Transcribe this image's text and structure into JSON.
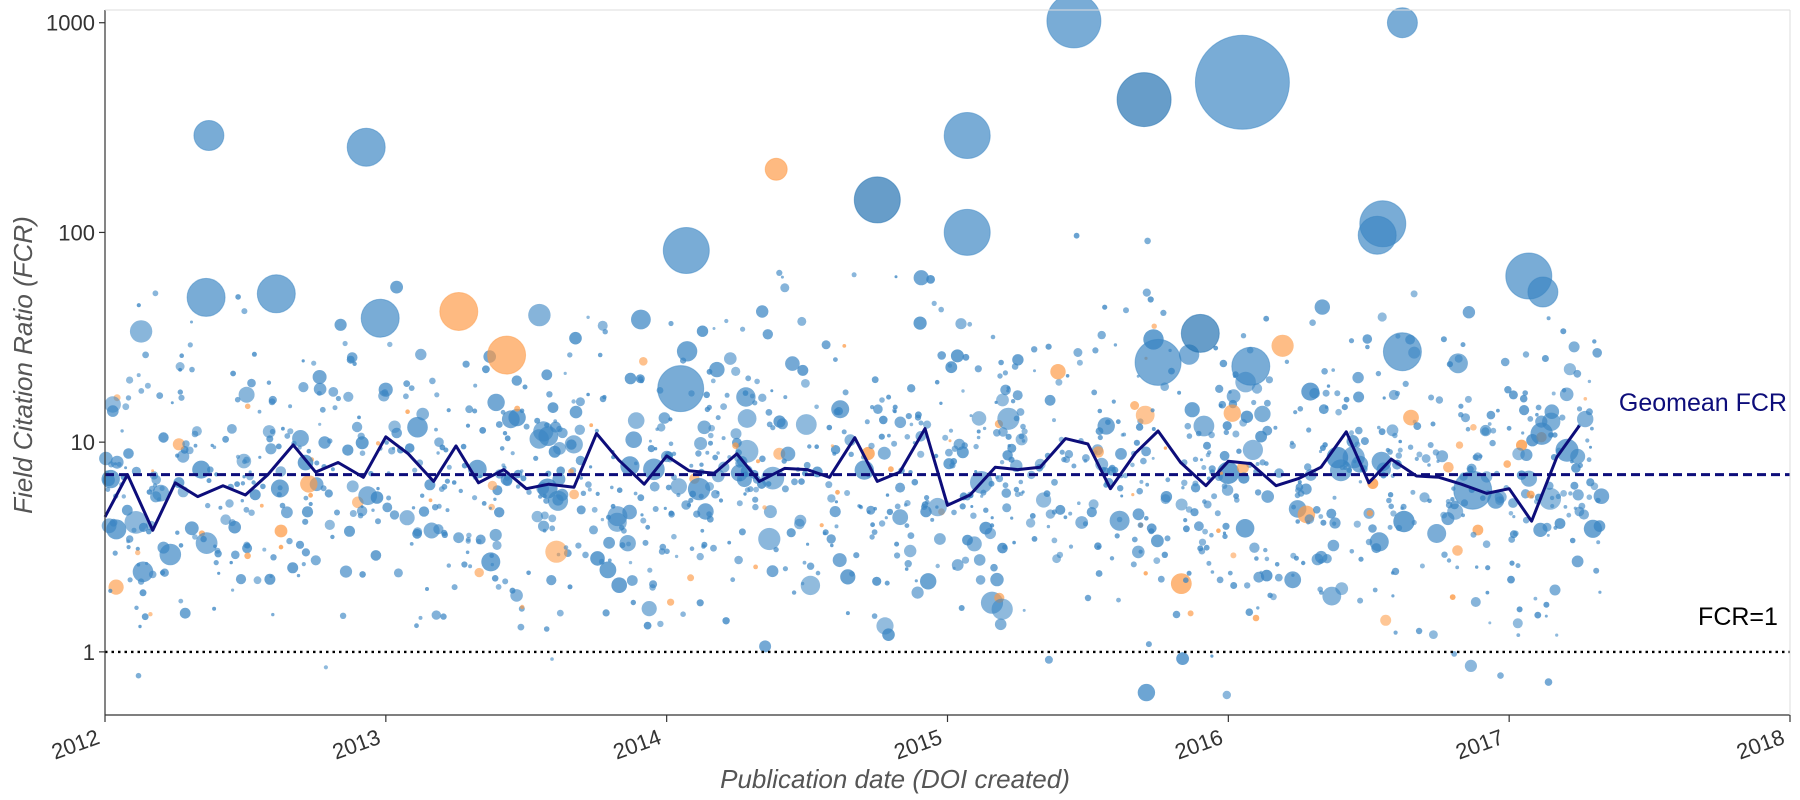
{
  "chart_data": {
    "type": "scatter",
    "title": "",
    "xlabel": "Publication date (DOI created)",
    "ylabel": "Field Citation Ratio (FCR)",
    "x_ticks": [
      "2012",
      "2013",
      "2014",
      "2015",
      "2016",
      "2017",
      "2018"
    ],
    "xlim": [
      2012,
      2018
    ],
    "y_scale": "log",
    "y_ticks": [
      "1",
      "10",
      "100",
      "1000"
    ],
    "y_tick_values": [
      1,
      10,
      100,
      1000
    ],
    "ylim": [
      0.5,
      1150
    ],
    "grid": false,
    "legend": "none",
    "colors": {
      "bubble_blue": "#3a85c3",
      "bubble_blue_dark": "#1f6fb0",
      "bubble_orange": "#fd9a45",
      "geomean_line": "#0d0d7a",
      "baseline": "#000000"
    },
    "annotations": [
      {
        "text": "Geomean FCR",
        "color": "#0d0d7a"
      },
      {
        "text": "FCR=1",
        "color": "#000000"
      }
    ],
    "reference_lines": [
      {
        "label": "Geomean FCR",
        "y": 7.0,
        "style": "dashed",
        "color": "#0d0d7a"
      },
      {
        "label": "FCR=1",
        "y": 1.0,
        "style": "dotted",
        "color": "#000000"
      }
    ],
    "monthly_geomean": {
      "x": [
        2012.0,
        2012.08,
        2012.17,
        2012.25,
        2012.33,
        2012.42,
        2012.5,
        2012.58,
        2012.67,
        2012.75,
        2012.83,
        2012.92,
        2013.0,
        2013.08,
        2013.17,
        2013.25,
        2013.33,
        2013.42,
        2013.5,
        2013.58,
        2013.67,
        2013.75,
        2013.83,
        2013.92,
        2014.0,
        2014.08,
        2014.17,
        2014.25,
        2014.33,
        2014.42,
        2014.5,
        2014.58,
        2014.67,
        2014.75,
        2014.83,
        2014.92,
        2015.0,
        2015.08,
        2015.17,
        2015.25,
        2015.33,
        2015.42,
        2015.5,
        2015.58,
        2015.67,
        2015.75,
        2015.83,
        2015.92,
        2016.0,
        2016.08,
        2016.17,
        2016.25,
        2016.33,
        2016.42,
        2016.5,
        2016.58,
        2016.67,
        2016.75,
        2016.83,
        2016.92,
        2017.0,
        2017.08,
        2017.17,
        2017.25
      ],
      "y": [
        4.4,
        7.0,
        3.8,
        6.4,
        5.5,
        6.2,
        5.6,
        7.0,
        9.7,
        7.2,
        8.0,
        6.8,
        10.6,
        8.8,
        6.5,
        9.6,
        6.4,
        7.4,
        6.0,
        6.3,
        6.1,
        11.0,
        8.2,
        6.3,
        8.6,
        7.3,
        7.1,
        8.8,
        6.5,
        7.5,
        7.4,
        6.8,
        10.5,
        6.5,
        7.2,
        11.6,
        5.0,
        5.6,
        7.6,
        7.4,
        7.6,
        10.4,
        9.8,
        6.0,
        8.9,
        11.3,
        8.0,
        6.2,
        8.1,
        7.9,
        6.2,
        6.7,
        7.6,
        11.2,
        6.4,
        8.3,
        6.9,
        6.8,
        6.3,
        5.7,
        6.0,
        4.2,
        8.5,
        12.0
      ]
    },
    "highlight_points": [
      {
        "x": 2012.37,
        "y": 290,
        "size": 2,
        "color": "blue"
      },
      {
        "x": 2012.36,
        "y": 49,
        "size": 3,
        "color": "blue"
      },
      {
        "x": 2012.61,
        "y": 51,
        "size": 3,
        "color": "blue"
      },
      {
        "x": 2012.93,
        "y": 255,
        "size": 3,
        "color": "blue"
      },
      {
        "x": 2012.98,
        "y": 39,
        "size": 3,
        "color": "blue"
      },
      {
        "x": 2013.26,
        "y": 42,
        "size": 3,
        "color": "orange"
      },
      {
        "x": 2013.43,
        "y": 26,
        "size": 3,
        "color": "orange"
      },
      {
        "x": 2014.07,
        "y": 82,
        "size": 4,
        "color": "blue"
      },
      {
        "x": 2014.05,
        "y": 18,
        "size": 4,
        "color": "blue"
      },
      {
        "x": 2014.39,
        "y": 200,
        "size": 1,
        "color": "orange"
      },
      {
        "x": 2014.75,
        "y": 143,
        "size": 4,
        "color": "blue-dark"
      },
      {
        "x": 2015.07,
        "y": 290,
        "size": 4,
        "color": "blue"
      },
      {
        "x": 2015.07,
        "y": 100,
        "size": 4,
        "color": "blue"
      },
      {
        "x": 2015.45,
        "y": 1020,
        "size": 5,
        "color": "blue"
      },
      {
        "x": 2015.7,
        "y": 430,
        "size": 5,
        "color": "blue-dark"
      },
      {
        "x": 2015.75,
        "y": 24,
        "size": 4,
        "color": "blue"
      },
      {
        "x": 2015.9,
        "y": 33,
        "size": 3,
        "color": "blue-dark"
      },
      {
        "x": 2016.05,
        "y": 520,
        "size": 10,
        "color": "blue"
      },
      {
        "x": 2016.08,
        "y": 23,
        "size": 3,
        "color": "blue"
      },
      {
        "x": 2016.55,
        "y": 110,
        "size": 4,
        "color": "blue"
      },
      {
        "x": 2016.53,
        "y": 97,
        "size": 3,
        "color": "blue"
      },
      {
        "x": 2016.62,
        "y": 27,
        "size": 3,
        "color": "blue"
      },
      {
        "x": 2016.62,
        "y": 1000,
        "size": 2,
        "color": "blue"
      },
      {
        "x": 2016.87,
        "y": 5.9,
        "size": 3,
        "color": "blue"
      },
      {
        "x": 2017.07,
        "y": 62,
        "size": 4,
        "color": "blue"
      },
      {
        "x": 2017.12,
        "y": 52,
        "size": 2,
        "color": "blue"
      }
    ]
  }
}
